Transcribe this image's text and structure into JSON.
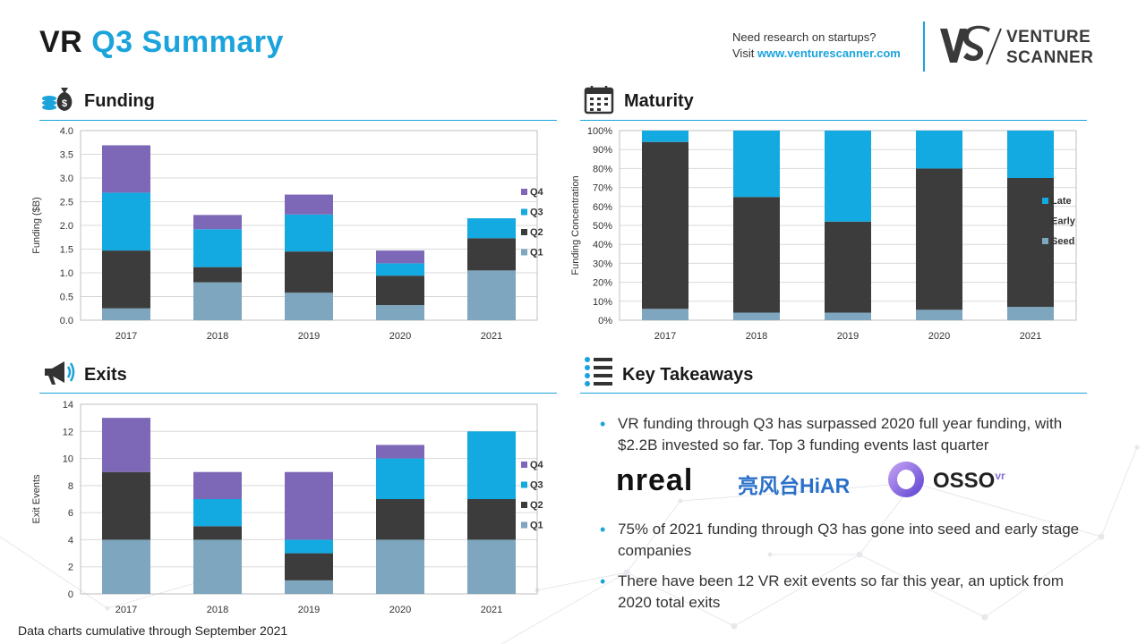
{
  "header": {
    "title_part1": "VR",
    "title_part2": "Q3 Summary",
    "promo_line1": "Need research on startups?",
    "promo_visit": "Visit ",
    "promo_url": "www.venturescanner.com",
    "brand_line1": "VENTURE",
    "brand_line2": "SCANNER"
  },
  "sections": {
    "funding": "Funding",
    "maturity": "Maturity",
    "exits": "Exits",
    "takeaways": "Key Takeaways"
  },
  "colors": {
    "q1": "#7ea6be",
    "q2": "#3c3c3c",
    "q3": "#13a9e1",
    "q4": "#7d68b7",
    "accent": "#1ba3db"
  },
  "chart_data": [
    {
      "id": "funding",
      "type": "bar",
      "stacked": true,
      "categories": [
        "2017",
        "2018",
        "2019",
        "2020",
        "2021"
      ],
      "series": [
        {
          "name": "Q1",
          "color": "#7ea6be",
          "values": [
            0.25,
            0.8,
            0.58,
            0.32,
            1.05
          ]
        },
        {
          "name": "Q2",
          "color": "#3c3c3c",
          "values": [
            1.22,
            0.32,
            0.87,
            0.62,
            0.68
          ]
        },
        {
          "name": "Q3",
          "color": "#13a9e1",
          "values": [
            1.22,
            0.8,
            0.78,
            0.26,
            0.42
          ]
        },
        {
          "name": "Q4",
          "color": "#7d68b7",
          "values": [
            1.0,
            0.3,
            0.42,
            0.27,
            0
          ]
        }
      ],
      "ylabel": "Funding ($B)",
      "ylim": [
        0,
        4.0
      ],
      "yticks": [
        "0.0",
        "0.5",
        "1.0",
        "1.5",
        "2.0",
        "2.5",
        "3.0",
        "3.5",
        "4.0"
      ],
      "legend": "right",
      "grid": true
    },
    {
      "id": "maturity",
      "type": "bar",
      "stacked": true,
      "categories": [
        "2017",
        "2018",
        "2019",
        "2020",
        "2021"
      ],
      "series": [
        {
          "name": "Seed",
          "color": "#7ea6be",
          "values": [
            6,
            4,
            4,
            5.5,
            7
          ]
        },
        {
          "name": "Early",
          "color": "#3c3c3c",
          "values": [
            88,
            61,
            48,
            74.5,
            68
          ]
        },
        {
          "name": "Late",
          "color": "#13a9e1",
          "values": [
            6,
            35,
            48,
            20,
            25
          ]
        }
      ],
      "ylabel": "Funding Concentration",
      "ylim": [
        0,
        100
      ],
      "yticks": [
        "0%",
        "10%",
        "20%",
        "30%",
        "40%",
        "50%",
        "60%",
        "70%",
        "80%",
        "90%",
        "100%"
      ],
      "legend": "right",
      "grid": true
    },
    {
      "id": "exits",
      "type": "bar",
      "stacked": true,
      "categories": [
        "2017",
        "2018",
        "2019",
        "2020",
        "2021"
      ],
      "series": [
        {
          "name": "Q1",
          "color": "#7ea6be",
          "values": [
            4,
            4,
            1,
            4,
            4
          ]
        },
        {
          "name": "Q2",
          "color": "#3c3c3c",
          "values": [
            5,
            1,
            2,
            3,
            3
          ]
        },
        {
          "name": "Q3",
          "color": "#13a9e1",
          "values": [
            0,
            2,
            1,
            3,
            5
          ]
        },
        {
          "name": "Q4",
          "color": "#7d68b7",
          "values": [
            4,
            2,
            5,
            1,
            0
          ]
        }
      ],
      "ylabel": "Exit Events",
      "ylim": [
        0,
        14
      ],
      "yticks": [
        "0",
        "2",
        "4",
        "6",
        "8",
        "10",
        "12",
        "14"
      ],
      "legend": "right",
      "grid": true
    }
  ],
  "takeaways": {
    "b1": "VR funding through Q3 has surpassed 2020 full year funding, with $2.2B invested so far. Top 3 funding events last quarter",
    "b2": "75% of 2021 funding through Q3 has gone into seed and early stage companies",
    "b3": "There have been 12 VR exit events so far this year, an uptick from 2020 total exits",
    "logo1": "nreal",
    "logo2": "亮风台HiAR",
    "logo3": "OSSO",
    "logo3_sup": "vr"
  },
  "footnote": "Data charts cumulative through September 2021"
}
